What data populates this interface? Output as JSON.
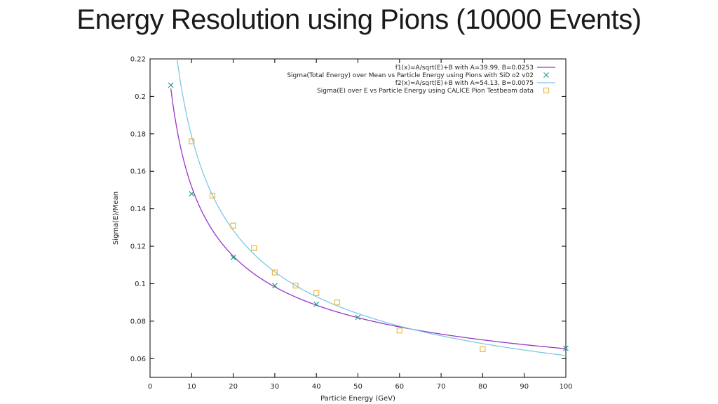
{
  "slide": {
    "title": "Energy Resolution using Pions (10000 Events)"
  },
  "chart_data": {
    "type": "scatter",
    "title": "",
    "xlabel": "Particle Energy (GeV)",
    "ylabel": "Sigma(E)/Mean",
    "xlim": [
      0,
      100
    ],
    "ylim": [
      0.05,
      0.22
    ],
    "xticks": [
      0,
      10,
      20,
      30,
      40,
      50,
      60,
      70,
      80,
      90,
      100
    ],
    "yticks": [
      0.06,
      0.08,
      0.1,
      0.12,
      0.14,
      0.16,
      0.18,
      0.2,
      0.22
    ],
    "ytick_labels": [
      "0.06",
      "0.08",
      "0.1",
      "0.12",
      "0.14",
      "0.16",
      "0.18",
      "0.2",
      "0.22"
    ],
    "grid": false,
    "legend_position": "top-right",
    "series": [
      {
        "name": "f1(x)=A/sqrt(E)+B with A=39.99, B=0.0253",
        "kind": "fit",
        "A": 39.99,
        "B": 0.0253,
        "x_range": [
          5,
          100
        ],
        "color": "#9933cc"
      },
      {
        "name": "Sigma(Total Energy) over Mean vs Particle Energy using Pions with SiD o2 v02",
        "kind": "points",
        "marker": "x",
        "color": "#2a9d8f",
        "x": [
          5,
          10,
          20,
          30,
          40,
          50,
          100
        ],
        "y": [
          0.206,
          0.148,
          0.114,
          0.099,
          0.089,
          0.082,
          0.0655
        ]
      },
      {
        "name": "f2(x)=A/sqrt(E)+B with A=54.13, B=0.0075",
        "kind": "fit",
        "A": 54.13,
        "B": 0.0075,
        "x_range": [
          5,
          100
        ],
        "color": "#7ec8e3"
      },
      {
        "name": "Sigma(E) over E vs Particle Energy using CALICE Pion Testbeam data",
        "kind": "points",
        "marker": "square",
        "color": "#e8b84a",
        "x": [
          10,
          15,
          20,
          25,
          30,
          35,
          40,
          45,
          60,
          80
        ],
        "y": [
          0.176,
          0.147,
          0.131,
          0.119,
          0.106,
          0.099,
          0.095,
          0.09,
          0.075,
          0.065
        ]
      }
    ]
  }
}
